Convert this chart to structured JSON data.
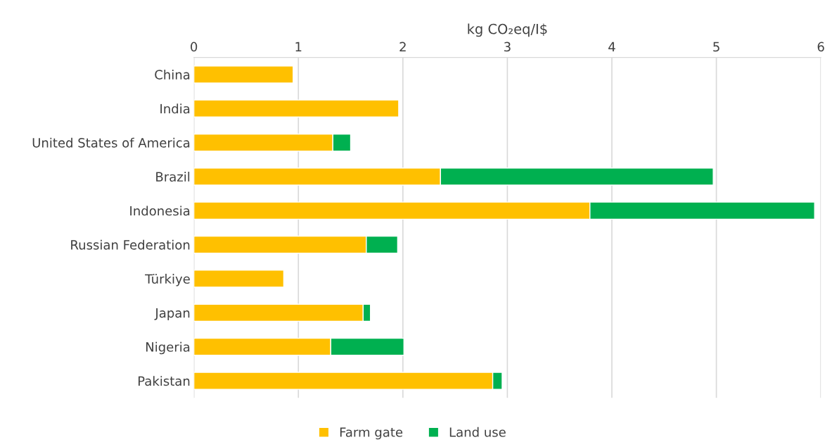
{
  "chart_data": {
    "type": "bar",
    "orientation": "horizontal",
    "stacked": true,
    "xlabel": "kg CO₂eq/I$",
    "categories": [
      "China",
      "India",
      "United States of America",
      "Brazil",
      "Indonesia",
      "Russian Federation",
      "Türkiye",
      "Japan",
      "Nigeria",
      "Pakistan"
    ],
    "series": [
      {
        "name": "Farm gate",
        "color": "#ffc000",
        "values": [
          0.95,
          1.96,
          1.33,
          2.36,
          3.79,
          1.65,
          0.86,
          1.62,
          1.31,
          2.86
        ]
      },
      {
        "name": "Land use",
        "color": "#00b050",
        "values": [
          null,
          null,
          0.17,
          2.61,
          2.15,
          0.3,
          null,
          0.07,
          0.7,
          0.09
        ]
      }
    ],
    "xlim": [
      0,
      6
    ],
    "xticks": [
      0,
      1,
      2,
      3,
      4,
      5,
      6
    ],
    "grid": "x",
    "legend": "bottom"
  }
}
